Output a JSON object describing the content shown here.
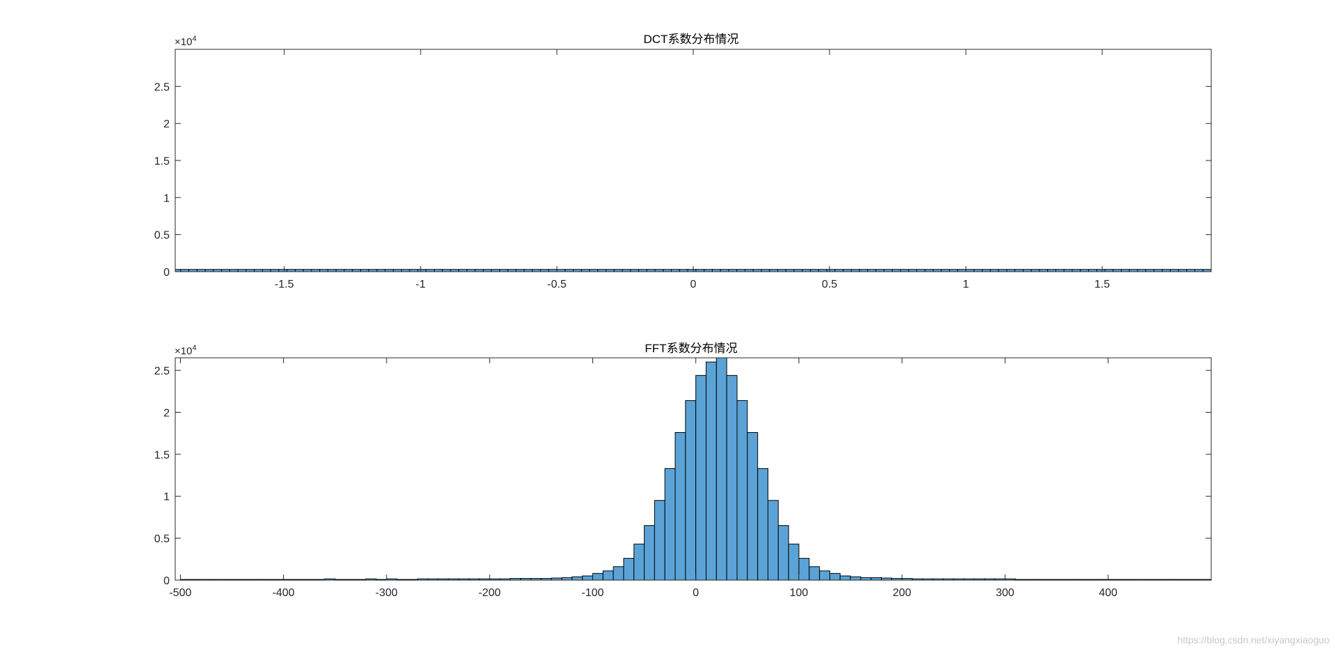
{
  "watermark": "https://blog.csdn.net/xiyangxiaoguo",
  "colors": {
    "bar_fill": "#5ba3d6",
    "bar_edge": "#000000",
    "axis": "#262626"
  },
  "chart_data": [
    {
      "type": "bar",
      "title": "DCT系数分布情况",
      "xlabel": "",
      "ylabel": "",
      "y_exponent_label": "×10",
      "y_exponent": "4",
      "xlim": [
        -1.9,
        1.9
      ],
      "ylim": [
        0,
        30000
      ],
      "xticks": [
        -1.5,
        -1,
        -0.5,
        0,
        0.5,
        1,
        1.5
      ],
      "xtick_labels": [
        "-1.5",
        "-1",
        "-0.5",
        "0",
        "0.5",
        "1",
        "1.5"
      ],
      "yticks": [
        0,
        5000,
        10000,
        15000,
        20000,
        25000
      ],
      "ytick_labels": [
        "0",
        "0.5",
        "1",
        "1.5",
        "2",
        "2.5"
      ],
      "bin_width": 0.03,
      "bin_left_edges": [
        -1.91,
        -1.88,
        -1.85,
        -1.82,
        -1.79,
        -1.76,
        -1.73,
        -1.7,
        -1.67,
        -1.64,
        -1.61,
        -1.58,
        -1.55,
        -1.52,
        -1.49,
        -1.46,
        -1.43,
        -1.4,
        -1.37,
        -1.34,
        -1.31,
        -1.28,
        -1.25,
        -1.22,
        -1.19,
        -1.16,
        -1.13,
        -1.1,
        -1.07,
        -1.04,
        -1.01,
        -0.98,
        -0.95,
        -0.92,
        -0.89,
        -0.86,
        -0.83,
        -0.8,
        -0.77,
        -0.74,
        -0.71,
        -0.68,
        -0.65,
        -0.62,
        -0.59,
        -0.56,
        -0.53,
        -0.5,
        -0.47,
        -0.44,
        -0.41,
        -0.38,
        -0.35,
        -0.32,
        -0.29,
        -0.26,
        -0.23,
        -0.2,
        -0.17,
        -0.14,
        -0.11,
        -0.08,
        -0.05,
        -0.02,
        0.01,
        0.04,
        0.07,
        0.1,
        0.13,
        0.16,
        0.19,
        0.22,
        0.25,
        0.28,
        0.31,
        0.34,
        0.37,
        0.4,
        0.43,
        0.46,
        0.49,
        0.52,
        0.55,
        0.58,
        0.61,
        0.64,
        0.67,
        0.7,
        0.73,
        0.76,
        0.79,
        0.82,
        0.85,
        0.88,
        0.91,
        0.94,
        0.97,
        1.0,
        1.03,
        1.06,
        1.09,
        1.12,
        1.15,
        1.18,
        1.21,
        1.24,
        1.27,
        1.3,
        1.33,
        1.36,
        1.39,
        1.42,
        1.45,
        1.48,
        1.51,
        1.54,
        1.57,
        1.6,
        1.63,
        1.66,
        1.69,
        1.72,
        1.75,
        1.78,
        1.81,
        1.84,
        1.87
      ],
      "values": [
        300,
        300,
        300,
        300,
        300,
        300,
        300,
        300,
        300,
        300,
        300,
        300,
        300,
        300,
        300,
        300,
        300,
        300,
        300,
        300,
        300,
        300,
        300,
        300,
        300,
        300,
        300,
        300,
        300,
        300,
        300,
        300,
        300,
        300,
        300,
        300,
        300,
        300,
        300,
        300,
        300,
        300,
        300,
        300,
        300,
        300,
        300,
        300,
        300,
        300,
        300,
        300,
        300,
        300,
        300,
        300,
        300,
        300,
        300,
        300,
        300,
        300,
        300,
        300,
        300,
        300,
        300,
        300,
        300,
        300,
        300,
        300,
        300,
        300,
        300,
        300,
        300,
        300,
        300,
        300,
        300,
        300,
        300,
        300,
        300,
        300,
        300,
        300,
        300,
        300,
        300,
        300,
        300,
        300,
        300,
        300,
        300,
        300,
        300,
        300,
        300,
        300,
        300,
        300,
        300,
        300,
        300,
        300,
        300,
        300,
        300,
        300,
        300,
        300,
        300,
        300,
        300,
        300,
        300,
        300,
        300,
        300,
        300,
        300,
        300,
        300,
        300
      ]
    },
    {
      "type": "bar",
      "title": "FFT系数分布情况",
      "xlabel": "",
      "ylabel": "",
      "y_exponent_label": "×10",
      "y_exponent": "4",
      "xlim": [
        -505,
        500
      ],
      "ylim": [
        0,
        26500
      ],
      "xticks": [
        -500,
        -400,
        -300,
        -200,
        -100,
        0,
        100,
        200,
        300,
        400
      ],
      "xtick_labels": [
        "-500",
        "-400",
        "-300",
        "-200",
        "-100",
        "0",
        "100",
        "200",
        "300",
        "400"
      ],
      "yticks": [
        0,
        5000,
        10000,
        15000,
        20000,
        25000
      ],
      "ytick_labels": [
        "0",
        "0.5",
        "1",
        "1.5",
        "2",
        "2.5"
      ],
      "bin_width": 10,
      "bin_left_edges": [
        -500,
        -490,
        -480,
        -470,
        -460,
        -450,
        -440,
        -430,
        -420,
        -410,
        -400,
        -390,
        -380,
        -370,
        -360,
        -350,
        -340,
        -330,
        -320,
        -310,
        -300,
        -290,
        -280,
        -270,
        -260,
        -250,
        -240,
        -230,
        -220,
        -210,
        -200,
        -190,
        -180,
        -170,
        -160,
        -150,
        -140,
        -130,
        -120,
        -110,
        -100,
        -90,
        -80,
        -70,
        -60,
        -50,
        -40,
        -30,
        -20,
        -10,
        0,
        10,
        20,
        30,
        40,
        50,
        60,
        70,
        80,
        90,
        100,
        110,
        120,
        130,
        140,
        150,
        160,
        170,
        180,
        190,
        200,
        210,
        220,
        230,
        240,
        250,
        260,
        270,
        280,
        290,
        300,
        310,
        320,
        330,
        340,
        350,
        360,
        370,
        380,
        390,
        400,
        410,
        420,
        430,
        440,
        450,
        460,
        470,
        480,
        490
      ],
      "values": [
        80,
        80,
        80,
        80,
        80,
        80,
        80,
        80,
        80,
        80,
        80,
        80,
        80,
        80,
        150,
        80,
        80,
        80,
        150,
        80,
        150,
        80,
        80,
        150,
        150,
        150,
        150,
        150,
        150,
        150,
        150,
        150,
        200,
        200,
        200,
        200,
        250,
        300,
        400,
        500,
        800,
        1100,
        1600,
        2600,
        4300,
        6500,
        9500,
        13300,
        17600,
        21400,
        24400,
        26000,
        26500,
        24400,
        21400,
        17600,
        13300,
        9500,
        6500,
        4300,
        2600,
        1600,
        1100,
        800,
        500,
        400,
        300,
        300,
        250,
        200,
        200,
        150,
        150,
        150,
        150,
        150,
        150,
        150,
        150,
        150,
        150,
        80,
        80,
        80,
        80,
        80,
        80,
        80,
        80,
        80,
        80,
        80,
        80,
        80,
        80,
        80,
        80,
        80,
        80,
        80
      ]
    }
  ]
}
